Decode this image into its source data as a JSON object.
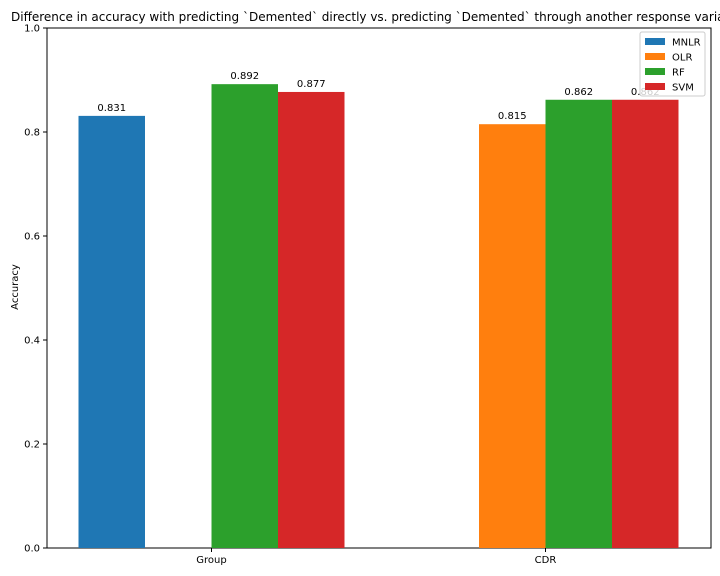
{
  "chart_data": {
    "type": "bar",
    "title": "Difference in accuracy with predicting `Demented` directly vs. predicting `Demented` through another response variable",
    "xlabel": "",
    "ylabel": "Accuracy",
    "ylim": [
      0,
      1.0
    ],
    "yticks": [
      "0.0",
      "0.2",
      "0.4",
      "0.6",
      "0.8",
      "1.0"
    ],
    "categories": [
      "Group",
      "CDR"
    ],
    "series": [
      {
        "name": "MNLR",
        "color": "#1f77b4",
        "values": [
          0.831,
          null
        ],
        "labels": [
          "0.831",
          ""
        ]
      },
      {
        "name": "OLR",
        "color": "#ff7f0e",
        "values": [
          null,
          0.815
        ],
        "labels": [
          "",
          "0.815"
        ]
      },
      {
        "name": "RF",
        "color": "#2ca02c",
        "values": [
          0.892,
          0.862
        ],
        "labels": [
          "0.892",
          "0.862"
        ]
      },
      {
        "name": "SVM",
        "color": "#d62728",
        "values": [
          0.877,
          0.862
        ],
        "labels": [
          "0.877",
          "0.862"
        ]
      }
    ],
    "grid": false,
    "legend_position": "top-right"
  }
}
